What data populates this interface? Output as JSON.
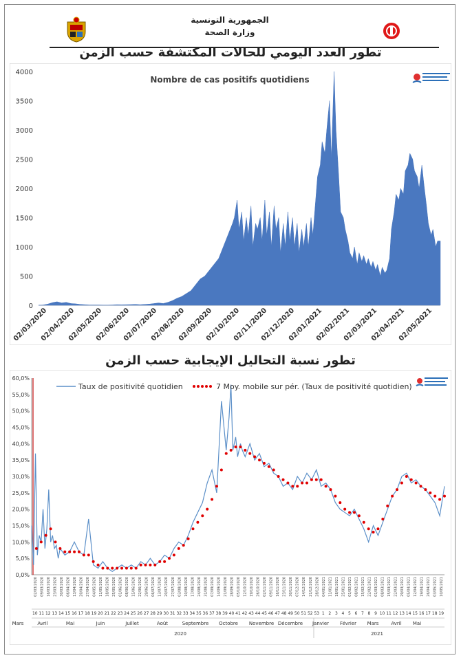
{
  "header": {
    "republic": "الجمهورية التونسية",
    "ministry": "وزارة الصحة",
    "title_cases": "تطور العدد اليومي للحالات المكتشفة حسب الزمن",
    "title_positivity": "تطور نسبة التحاليل الإيجابية حسب الزمن"
  },
  "colors": {
    "area_fill": "#4a78c0",
    "line": "#5b8fc8",
    "moving_avg": "#e00000",
    "axis": "#999999"
  },
  "chart_data": [
    {
      "type": "area",
      "title": "Nombre de cas positifs quotidiens",
      "xlabel": "",
      "ylabel": "",
      "ylim": [
        0,
        4000
      ],
      "yticks": [
        0,
        500,
        1000,
        1500,
        2000,
        2500,
        3000,
        3500,
        4000
      ],
      "x_tick_labels": [
        "02/03/2020",
        "02/04/2020",
        "02/05/2020",
        "02/06/2020",
        "02/07/2020",
        "02/08/2020",
        "02/09/2020",
        "02/10/2020",
        "02/11/2020",
        "02/12/2020",
        "02/01/2021",
        "02/02/2021",
        "02/03/2021",
        "02/04/2021",
        "02/05/2021"
      ],
      "grid": false,
      "x": [
        0,
        5,
        10,
        15,
        20,
        25,
        30,
        35,
        40,
        45,
        50,
        55,
        60,
        65,
        70,
        75,
        80,
        85,
        90,
        95,
        100,
        105,
        110,
        115,
        120,
        125,
        130,
        135,
        140,
        145,
        150,
        155,
        160,
        165,
        170,
        175,
        180,
        185,
        190,
        195,
        200,
        205,
        210,
        212,
        215,
        217,
        220,
        222,
        225,
        227,
        230,
        232,
        235,
        237,
        240,
        242,
        245,
        247,
        250,
        252,
        255,
        257,
        260,
        262,
        265,
        267,
        270,
        272,
        275,
        277,
        280,
        282,
        285,
        287,
        290,
        292,
        295,
        297,
        300,
        302,
        305,
        307,
        310,
        312,
        315,
        317,
        320,
        322,
        325,
        327,
        330,
        332,
        335,
        337,
        340,
        342,
        345,
        347,
        350,
        352,
        355,
        357,
        360,
        362,
        365,
        367,
        370,
        372,
        375,
        377,
        380,
        382,
        385,
        387,
        390,
        392,
        395,
        397,
        400,
        402,
        405,
        407,
        410,
        412,
        415,
        417,
        420,
        422,
        425,
        427,
        430,
        432,
        435
      ],
      "values": [
        0,
        5,
        20,
        45,
        60,
        40,
        50,
        30,
        25,
        15,
        10,
        5,
        5,
        5,
        3,
        3,
        5,
        10,
        8,
        10,
        12,
        15,
        10,
        15,
        20,
        30,
        40,
        30,
        50,
        80,
        120,
        150,
        200,
        250,
        350,
        450,
        500,
        600,
        700,
        800,
        1000,
        1200,
        1400,
        1500,
        1800,
        1300,
        1600,
        1100,
        1500,
        1200,
        1700,
        1000,
        1400,
        1300,
        1500,
        1100,
        1800,
        1200,
        1600,
        1000,
        1700,
        1300,
        1500,
        900,
        1400,
        1000,
        1600,
        1100,
        1500,
        1000,
        1400,
        900,
        1300,
        1000,
        1400,
        1000,
        1500,
        1200,
        1800,
        2200,
        2400,
        2800,
        2600,
        3000,
        3500,
        2500,
        4000,
        3000,
        2200,
        1600,
        1500,
        1300,
        1100,
        900,
        800,
        1000,
        700,
        900,
        750,
        850,
        700,
        800,
        650,
        750,
        600,
        700,
        500,
        650,
        550,
        600,
        800,
        1300,
        1600,
        1900,
        1800,
        2000,
        1900,
        2300,
        2400,
        2600,
        2500,
        2300,
        2200,
        2000,
        2400,
        2100,
        1700,
        1400,
        1200,
        1300,
        1000,
        1100,
        1100
      ]
    },
    {
      "type": "line",
      "xlabel": "",
      "ylabel": "",
      "ylim": [
        0,
        60
      ],
      "yticks": [
        "0,0%",
        "5,0%",
        "10,0%",
        "15,0%",
        "20,0%",
        "25,0%",
        "30,0%",
        "35,0%",
        "40,0%",
        "45,0%",
        "50,0%",
        "55,0%",
        "60,0%"
      ],
      "legend_position": "top",
      "grid": false,
      "series": [
        {
          "name": "Taux de positivité quotidien",
          "x": [
            0,
            2,
            4,
            6,
            8,
            10,
            12,
            14,
            16,
            18,
            20,
            22,
            24,
            26,
            28,
            30,
            35,
            40,
            45,
            50,
            55,
            60,
            65,
            70,
            75,
            80,
            85,
            90,
            95,
            100,
            105,
            110,
            115,
            120,
            125,
            130,
            135,
            140,
            145,
            150,
            155,
            160,
            165,
            170,
            175,
            180,
            185,
            190,
            195,
            200,
            205,
            208,
            210,
            212,
            215,
            217,
            220,
            222,
            225,
            230,
            235,
            240,
            245,
            250,
            255,
            260,
            265,
            270,
            275,
            280,
            285,
            290,
            295,
            300,
            305,
            310,
            315,
            320,
            325,
            330,
            335,
            340,
            345,
            350,
            355,
            360,
            365,
            370,
            375,
            380,
            385,
            390,
            395,
            400,
            405,
            410,
            415,
            420,
            425,
            430,
            435
          ],
          "values": [
            15,
            3,
            37,
            6,
            12,
            10,
            20,
            8,
            14,
            26,
            10,
            12,
            8,
            9,
            5,
            8,
            6,
            7,
            10,
            7,
            6,
            17,
            3,
            2,
            4,
            2,
            1,
            2,
            3,
            2,
            3,
            2,
            4,
            3,
            5,
            3,
            4,
            6,
            5,
            8,
            10,
            9,
            12,
            16,
            19,
            22,
            28,
            32,
            25,
            53,
            38,
            48,
            58,
            38,
            42,
            36,
            40,
            38,
            36,
            40,
            35,
            37,
            33,
            34,
            31,
            30,
            27,
            28,
            26,
            30,
            28,
            31,
            29,
            32,
            27,
            28,
            26,
            22,
            20,
            19,
            18,
            20,
            17,
            14,
            10,
            15,
            12,
            16,
            20,
            24,
            26,
            30,
            31,
            28,
            29,
            27,
            26,
            24,
            22,
            18,
            27
          ]
        },
        {
          "name": "7 Moy. mobile sur pér. (Taux de positivité quotidien)",
          "x": [
            5,
            10,
            15,
            20,
            25,
            30,
            35,
            40,
            45,
            50,
            55,
            60,
            65,
            70,
            75,
            80,
            85,
            90,
            95,
            100,
            105,
            110,
            115,
            120,
            125,
            130,
            135,
            140,
            145,
            150,
            155,
            160,
            165,
            170,
            175,
            180,
            185,
            190,
            195,
            200,
            205,
            210,
            215,
            220,
            225,
            230,
            235,
            240,
            245,
            250,
            255,
            260,
            265,
            270,
            275,
            280,
            285,
            290,
            295,
            300,
            305,
            310,
            315,
            320,
            325,
            330,
            335,
            340,
            345,
            350,
            355,
            360,
            365,
            370,
            375,
            380,
            385,
            390,
            395,
            400,
            405,
            410,
            415,
            420,
            425,
            430,
            435
          ],
          "values": [
            8,
            10,
            12,
            14,
            10,
            8,
            7,
            7,
            7,
            7,
            6,
            6,
            4,
            3,
            2,
            2,
            2,
            2,
            2,
            2,
            2,
            2,
            3,
            3,
            3,
            3,
            4,
            4,
            5,
            6,
            8,
            9,
            11,
            14,
            16,
            18,
            20,
            23,
            27,
            32,
            37,
            38,
            39,
            39,
            38,
            37,
            36,
            35,
            34,
            33,
            32,
            30,
            29,
            28,
            27,
            27,
            28,
            28,
            29,
            29,
            29,
            27,
            26,
            24,
            22,
            20,
            19,
            19,
            18,
            16,
            14,
            13,
            14,
            17,
            21,
            24,
            26,
            28,
            30,
            29,
            28,
            27,
            26,
            25,
            24,
            23,
            24
          ]
        }
      ],
      "x_tick_labels": [
        "02/03/2020",
        "09/03/2020",
        "16/03/2020",
        "23/03/2020",
        "30/03/2020",
        "06/04/2020",
        "13/04/2020",
        "20/04/2020",
        "27/04/2020",
        "04/05/2020",
        "11/05/2020",
        "18/05/2020",
        "25/05/2020",
        "01/06/2020",
        "08/06/2020",
        "15/06/2020",
        "22/06/2020",
        "29/06/2020",
        "06/07/2020",
        "13/07/2020",
        "20/07/2020",
        "27/07/2020",
        "03/08/2020",
        "10/08/2020",
        "17/08/2020",
        "24/08/2020",
        "31/08/2020",
        "07/09/2020",
        "14/09/2020",
        "21/09/2020",
        "28/09/2020",
        "05/10/2020",
        "12/10/2020",
        "19/10/2020",
        "26/10/2020",
        "02/11/2020",
        "09/11/2020",
        "16/11/2020",
        "23/11/2020",
        "30/11/2020",
        "07/12/2020",
        "14/12/2020",
        "21/12/2020",
        "28/12/2020",
        "04/01/2021",
        "11/01/2021",
        "18/01/2021",
        "25/01/2021",
        "01/02/2021",
        "08/02/2021",
        "15/02/2021",
        "22/02/2021",
        "01/03/2021",
        "08/03/2021",
        "15/03/2021",
        "22/03/2021",
        "29/03/2021",
        "05/04/2021",
        "12/04/2021",
        "19/04/2021",
        "26/04/2021",
        "03/05/2021",
        "10/05/2021"
      ],
      "week_numbers": [
        "10",
        "11",
        "12",
        "13",
        "14",
        "15",
        "16",
        "17",
        "18",
        "19",
        "20",
        "21",
        "22",
        "23",
        "24",
        "25",
        "26",
        "27",
        "28",
        "29",
        "30",
        "31",
        "32",
        "33",
        "34",
        "35",
        "36",
        "37",
        "38",
        "39",
        "40",
        "41",
        "42",
        "43",
        "44",
        "45",
        "46",
        "47",
        "48",
        "49",
        "50",
        "51",
        "52",
        "53",
        "1",
        "2",
        "3",
        "4",
        "5",
        "6",
        "7",
        "8",
        "9",
        "10",
        "11",
        "12",
        "13",
        "14",
        "15",
        "16",
        "17",
        "18",
        "19"
      ],
      "months": [
        "Mars",
        "Avril",
        "Mai",
        "Juin",
        "Juillet",
        "Août",
        "Septembre",
        "Octobre",
        "Novembre",
        "Décembre",
        "Janvier",
        "Février",
        "Mars",
        "Avril",
        "Mai"
      ],
      "years": [
        "2020",
        "2021"
      ]
    }
  ]
}
